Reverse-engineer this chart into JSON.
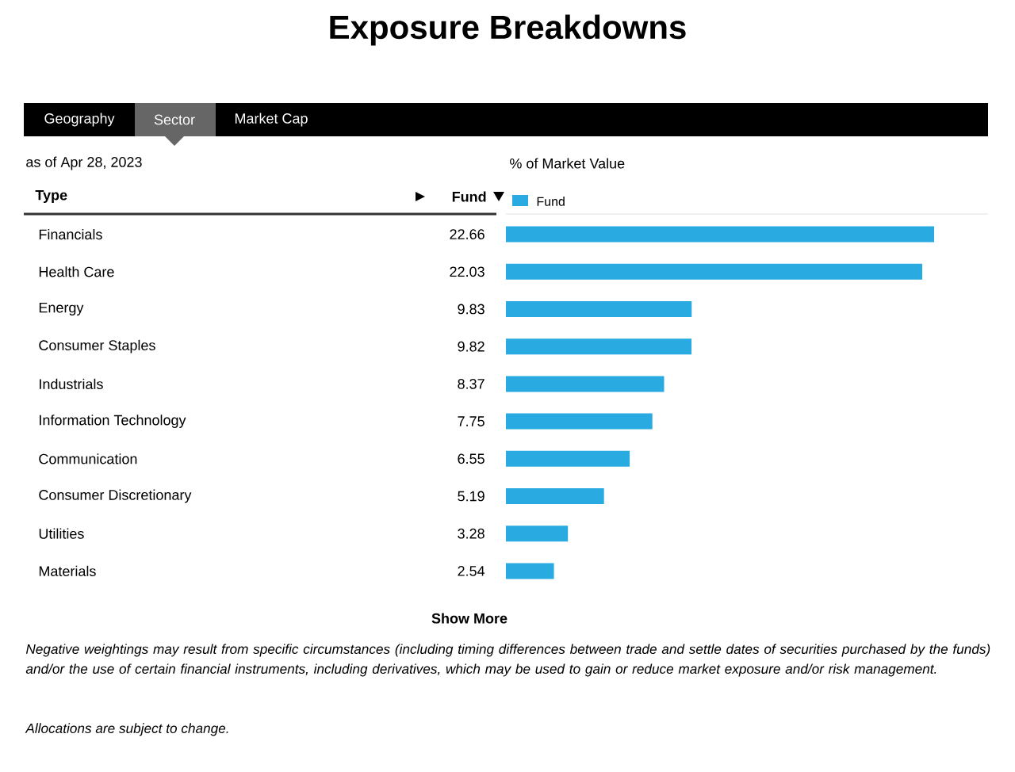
{
  "chart_data": {
    "type": "bar",
    "orientation": "horizontal",
    "title": "Exposure Breakdowns",
    "xlabel": "% of Market Value",
    "categories": [
      "Financials",
      "Health Care",
      "Energy",
      "Consumer Staples",
      "Industrials",
      "Information Technology",
      "Communication",
      "Consumer Discretionary",
      "Utilities",
      "Materials"
    ],
    "series": [
      {
        "name": "Fund",
        "color": "#29abe2",
        "values": [
          22.66,
          22.03,
          9.83,
          9.82,
          8.37,
          7.75,
          6.55,
          5.19,
          3.28,
          2.54
        ]
      }
    ],
    "data_labels": true,
    "legend": "top left",
    "annotations": [
      "Geography",
      "Sector",
      "Market Cap",
      "as of Apr 28, 2023",
      "Type",
      "Fund",
      "Show More",
      "Negative weightings may result from specific circumstances (including timing differences between trade and settle dates of securities purchased by the funds) and/or the use of certain financial instruments, including derivatives, which may be used to gain or reduce market exposure and/or risk management.",
      "Allocations are subject to change."
    ]
  }
}
